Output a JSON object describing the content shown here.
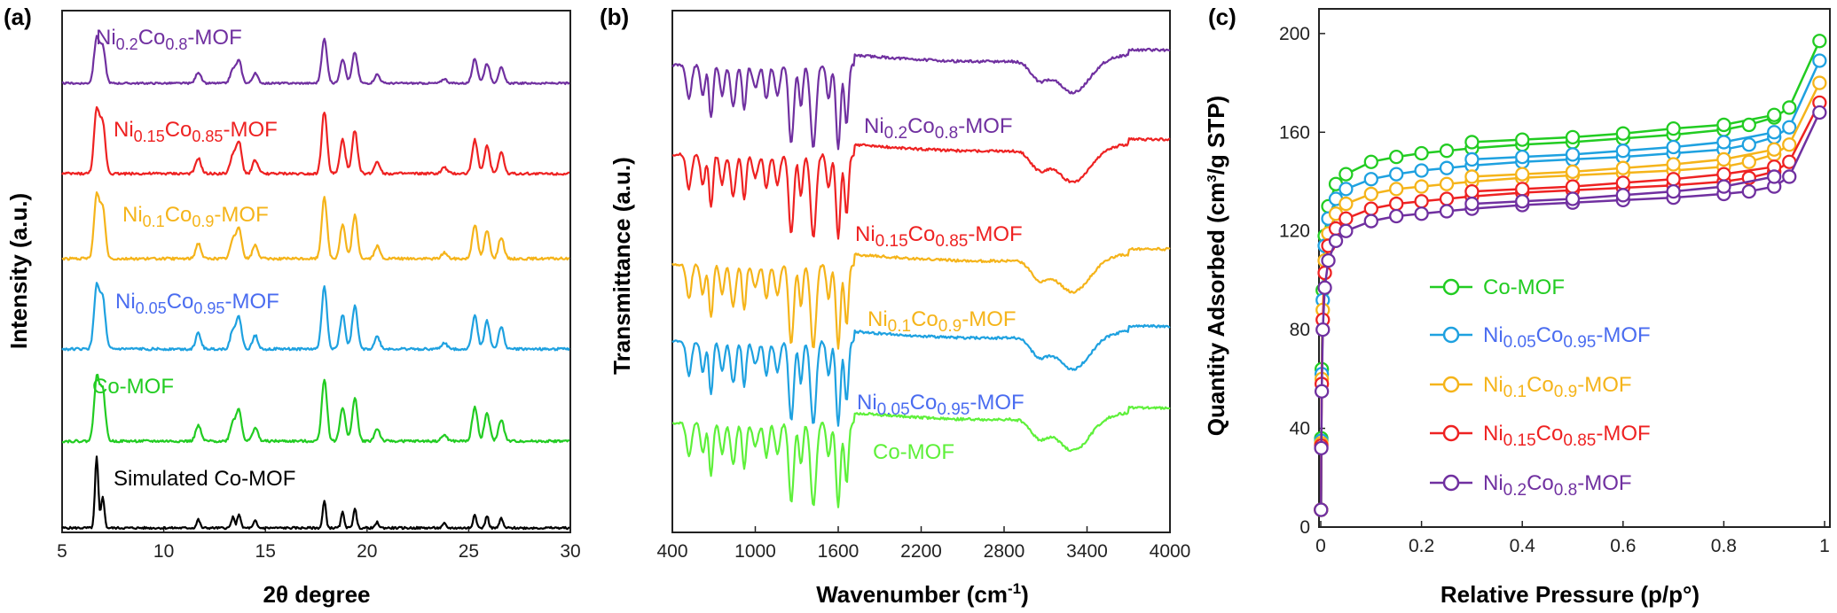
{
  "chart_data": [
    {
      "panel": "(a)",
      "type": "line",
      "xlabel": "2θ degree",
      "ylabel": "Intensity (a.u.)",
      "xlim": [
        5,
        30
      ],
      "xticks": [
        5,
        10,
        15,
        20,
        25,
        30
      ],
      "y_ticks_shown": false,
      "peak_positions_2theta": [
        6.7,
        7.0,
        11.7,
        13.4,
        13.7,
        14.5,
        17.9,
        18.8,
        19.4,
        20.5,
        23.8,
        25.3,
        25.9,
        26.6
      ],
      "series": [
        {
          "name": "Simulated Co-MOF",
          "color": "#000000",
          "relative_peak_heights": [
            1.0,
            0.45,
            0.12,
            0.15,
            0.2,
            0.1,
            0.38,
            0.22,
            0.28,
            0.08,
            0.06,
            0.2,
            0.17,
            0.14
          ]
        },
        {
          "name": "Co-MOF",
          "color": "#22cc22",
          "relative_peak_heights": [
            1.0,
            0.8,
            0.25,
            0.3,
            0.5,
            0.22,
            1.0,
            0.55,
            0.7,
            0.2,
            0.1,
            0.55,
            0.45,
            0.35
          ]
        },
        {
          "name": "Ni0.05Co0.95-MOF",
          "color": "#1ea1e0",
          "relative_peak_heights": [
            1.0,
            0.8,
            0.25,
            0.3,
            0.5,
            0.22,
            1.0,
            0.55,
            0.7,
            0.2,
            0.1,
            0.55,
            0.45,
            0.35
          ]
        },
        {
          "name": "Ni0.1Co0.9-MOF",
          "color": "#f5b41a",
          "relative_peak_heights": [
            1.0,
            0.8,
            0.25,
            0.3,
            0.5,
            0.22,
            1.0,
            0.55,
            0.7,
            0.2,
            0.1,
            0.55,
            0.45,
            0.35
          ]
        },
        {
          "name": "Ni0.15Co0.85-MOF",
          "color": "#ee2222",
          "relative_peak_heights": [
            1.0,
            0.8,
            0.25,
            0.3,
            0.5,
            0.22,
            1.0,
            0.55,
            0.7,
            0.2,
            0.1,
            0.55,
            0.45,
            0.35
          ]
        },
        {
          "name": "Ni0.2Co0.8-MOF",
          "color": "#7030a0",
          "relative_peak_heights": [
            1.0,
            0.8,
            0.25,
            0.3,
            0.5,
            0.22,
            1.0,
            0.55,
            0.7,
            0.2,
            0.1,
            0.55,
            0.45,
            0.35
          ]
        }
      ],
      "labels": [
        {
          "pre": "Ni",
          "sub1": "0.2",
          "mid": "Co",
          "sub2": "0.8",
          "post": "-MOF",
          "color": "#7030a0"
        },
        {
          "pre": "Ni",
          "sub1": "0.15",
          "mid": "Co",
          "sub2": "0.85",
          "post": "-MOF",
          "color": "#ee2222"
        },
        {
          "pre": "Ni",
          "sub1": "0.1",
          "mid": "Co",
          "sub2": "0.9",
          "post": "-MOF",
          "color": "#f5b41a"
        },
        {
          "pre": "Ni",
          "sub1": "0.05",
          "mid": "Co",
          "sub2": "0.95",
          "post": "-MOF",
          "color": "#4a6cf0"
        },
        {
          "pre": "Co-MOF",
          "sub1": "",
          "mid": "",
          "sub2": "",
          "post": "",
          "color": "#22cc22"
        },
        {
          "pre": "Simulated Co-MOF",
          "sub1": "",
          "mid": "",
          "sub2": "",
          "post": "",
          "color": "#000000"
        }
      ]
    },
    {
      "panel": "(b)",
      "type": "line",
      "xlabel": "Wavenumber (cm",
      "xlabel_sup": "-1",
      "xlabel_close": ")",
      "ylabel": "Transmittance (a.u.)",
      "xlim": [
        400,
        4000
      ],
      "xticks": [
        400,
        1000,
        1600,
        2200,
        2800,
        3400,
        4000
      ],
      "y_ticks_shown": false,
      "series_colors": [
        "#7030a0",
        "#ee2222",
        "#f5b41a",
        "#1ea1e0",
        "#5ef03a"
      ],
      "labels": [
        {
          "pre": "Ni",
          "sub1": "0.2",
          "mid": "Co",
          "sub2": "0.8",
          "post": "-MOF",
          "color": "#7030a0"
        },
        {
          "pre": "Ni",
          "sub1": "0.15",
          "mid": "Co",
          "sub2": "0.85",
          "post": "-MOF",
          "color": "#ee2222"
        },
        {
          "pre": "Ni",
          "sub1": "0.1",
          "mid": "Co",
          "sub2": "0.9",
          "post": "-MOF",
          "color": "#f5b41a"
        },
        {
          "pre": "Ni",
          "sub1": "0.05",
          "mid": "Co",
          "sub2": "0.95",
          "post": "-MOF",
          "color": "#4a6cf0"
        },
        {
          "pre": "Co-MOF",
          "sub1": "",
          "mid": "",
          "sub2": "",
          "post": "",
          "color": "#5ef03a"
        }
      ]
    },
    {
      "panel": "(c)",
      "type": "scatter",
      "xlabel": "Relative Pressure (p/p°)",
      "ylabel": "Quantity Adsorbed (cm",
      "ylabel_sup": "3",
      "ylabel_close": "/g STP)",
      "xlim": [
        0,
        1
      ],
      "ylim": [
        0,
        210
      ],
      "xticks": [
        "0",
        "0.2",
        "0.4",
        "0.6",
        "0.8",
        "1"
      ],
      "yticks": [
        "0",
        "40",
        "80",
        "120",
        "160",
        "200"
      ],
      "legend_position": "center-right",
      "series": [
        {
          "color": "#22cc22",
          "p": [
            0.0005,
            0.001,
            0.002,
            0.004,
            0.008,
            0.015,
            0.03,
            0.05,
            0.1,
            0.15,
            0.2,
            0.25,
            0.3,
            0.4,
            0.5,
            0.6,
            0.7,
            0.8,
            0.85,
            0.9,
            0.93,
            0.99
          ],
          "q_ads": [
            7,
            36,
            64,
            96,
            118,
            130,
            139,
            143,
            148,
            150,
            151.5,
            152.5,
            153.5,
            155,
            156,
            157.5,
            159,
            161,
            163,
            166,
            170,
            197
          ],
          "q_des": [
            156,
            157,
            158,
            159.5,
            161.5,
            163,
            167
          ]
        },
        {
          "color": "#1ea1e0",
          "p": [
            0.0005,
            0.001,
            0.002,
            0.004,
            0.008,
            0.015,
            0.03,
            0.05,
            0.1,
            0.15,
            0.2,
            0.25,
            0.3,
            0.4,
            0.5,
            0.6,
            0.7,
            0.8,
            0.85,
            0.9,
            0.93,
            0.99
          ],
          "q_ads": [
            7,
            35,
            62,
            92,
            114,
            125,
            133,
            137,
            141,
            143,
            144.5,
            145.5,
            146.5,
            148,
            149,
            150,
            151.5,
            153,
            155,
            158,
            162,
            189
          ],
          "q_des": [
            149,
            150,
            151,
            152.5,
            154,
            156,
            160
          ]
        },
        {
          "color": "#f5b41a",
          "p": [
            0.0005,
            0.001,
            0.002,
            0.004,
            0.008,
            0.015,
            0.03,
            0.05,
            0.1,
            0.15,
            0.2,
            0.25,
            0.3,
            0.4,
            0.5,
            0.6,
            0.7,
            0.8,
            0.85,
            0.9,
            0.93,
            0.99
          ],
          "q_ads": [
            7,
            34,
            60,
            88,
            108,
            119,
            127,
            131,
            135,
            137,
            138,
            139,
            140,
            141.5,
            142.5,
            143.5,
            144.5,
            146,
            148,
            151,
            155,
            180
          ],
          "q_des": [
            142,
            143,
            144,
            145.5,
            147,
            149,
            153
          ]
        },
        {
          "color": "#ee2222",
          "p": [
            0.0005,
            0.001,
            0.002,
            0.004,
            0.008,
            0.015,
            0.03,
            0.05,
            0.1,
            0.15,
            0.2,
            0.25,
            0.3,
            0.4,
            0.5,
            0.6,
            0.7,
            0.8,
            0.85,
            0.9,
            0.93,
            0.99
          ],
          "q_ads": [
            7,
            33,
            58,
            84,
            103,
            114,
            121,
            125,
            129,
            131,
            132,
            133,
            134,
            135.5,
            136.5,
            137.5,
            138.5,
            140,
            141.5,
            144,
            148,
            172
          ],
          "q_des": [
            136,
            137,
            138,
            139.5,
            141,
            143,
            146
          ]
        },
        {
          "color": "#7030a0",
          "p": [
            0.0005,
            0.001,
            0.002,
            0.004,
            0.008,
            0.015,
            0.03,
            0.05,
            0.1,
            0.15,
            0.2,
            0.25,
            0.3,
            0.4,
            0.5,
            0.6,
            0.7,
            0.8,
            0.85,
            0.9,
            0.93,
            0.99
          ],
          "q_ads": [
            7,
            32,
            55,
            80,
            97,
            108,
            116,
            120,
            124,
            126,
            127,
            128,
            129,
            130.5,
            131.5,
            132.5,
            133.5,
            135,
            136,
            138,
            142,
            168
          ],
          "q_des": [
            131,
            132,
            133,
            134.5,
            136,
            138,
            142
          ]
        }
      ],
      "legend": [
        {
          "pre": "Co-MOF",
          "sub1": "",
          "mid": "",
          "sub2": "",
          "post": "",
          "color": "#22cc22"
        },
        {
          "pre": "Ni",
          "sub1": "0.05",
          "mid": "Co",
          "sub2": "0.95",
          "post": "-MOF",
          "color": "#1ea1e0"
        },
        {
          "pre": "Ni",
          "sub1": "0.1",
          "mid": "Co",
          "sub2": "0.9",
          "post": "-MOF",
          "color": "#f5b41a"
        },
        {
          "pre": "Ni",
          "sub1": "0.15",
          "mid": "Co",
          "sub2": "0.85",
          "post": "-MOF",
          "color": "#ee2222"
        },
        {
          "pre": "Ni",
          "sub1": "0.2",
          "mid": "Co",
          "sub2": "0.8",
          "post": "-MOF",
          "color": "#7030a0"
        }
      ]
    }
  ]
}
